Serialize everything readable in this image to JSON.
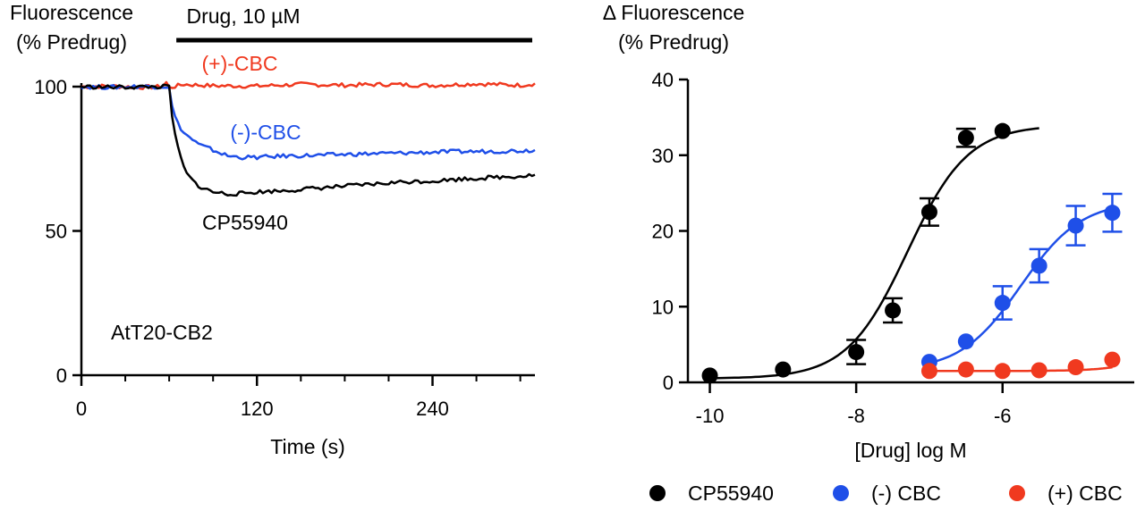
{
  "colors": {
    "cp": "#000000",
    "minus": "#1f4fe8",
    "plus": "#f0391f",
    "axis": "#000000"
  },
  "chart_data": [
    {
      "type": "line",
      "ylabel_lines": [
        "Fluorescence",
        "(% Predrug)"
      ],
      "xlabel": "Time (s)",
      "drug_bar_label": "Drug, 10 µM",
      "drug_bar_x": [
        60,
        310
      ],
      "annotation": "AtT20-CB2",
      "xlim": [
        0,
        310
      ],
      "ylim": [
        0,
        100
      ],
      "xticks": [
        0,
        120,
        240
      ],
      "yticks": [
        0,
        50,
        100
      ],
      "x_minor_ticks": [
        30,
        60,
        90,
        150,
        180,
        210,
        270,
        300
      ],
      "series": [
        {
          "name": "(+)-CBC",
          "color_key": "plus",
          "points": [
            [
              0,
              100
            ],
            [
              20,
              100.2
            ],
            [
              40,
              99.8
            ],
            [
              55,
              100
            ],
            [
              58,
              101.5
            ],
            [
              60,
              99.6
            ],
            [
              70,
              100.8
            ],
            [
              90,
              100.3
            ],
            [
              120,
              100.2
            ],
            [
              150,
              100.8
            ],
            [
              180,
              100.5
            ],
            [
              210,
              100.8
            ],
            [
              240,
              100.4
            ],
            [
              270,
              101
            ],
            [
              300,
              100.5
            ],
            [
              310,
              101
            ]
          ]
        },
        {
          "name": "(-)-CBC",
          "color_key": "minus",
          "points": [
            [
              0,
              100
            ],
            [
              20,
              99.8
            ],
            [
              40,
              100.1
            ],
            [
              60,
              100
            ],
            [
              62,
              93
            ],
            [
              65,
              88
            ],
            [
              70,
              84
            ],
            [
              75,
              82
            ],
            [
              80,
              80
            ],
            [
              90,
              78
            ],
            [
              100,
              76
            ],
            [
              110,
              75.5
            ],
            [
              120,
              75.5
            ],
            [
              140,
              76
            ],
            [
              160,
              76.2
            ],
            [
              180,
              76.5
            ],
            [
              200,
              76.8
            ],
            [
              220,
              77
            ],
            [
              240,
              77.3
            ],
            [
              260,
              77.5
            ],
            [
              280,
              77.6
            ],
            [
              300,
              77.8
            ],
            [
              310,
              78
            ]
          ]
        },
        {
          "name": "CP55940",
          "color_key": "cp",
          "points": [
            [
              0,
              100
            ],
            [
              20,
              99.8
            ],
            [
              40,
              99.9
            ],
            [
              60,
              100
            ],
            [
              62,
              90
            ],
            [
              64,
              83
            ],
            [
              67,
              77
            ],
            [
              70,
              72
            ],
            [
              73,
              69
            ],
            [
              77,
              67
            ],
            [
              82,
              65
            ],
            [
              90,
              63.5
            ],
            [
              100,
              62.8
            ],
            [
              110,
              63
            ],
            [
              120,
              63.5
            ],
            [
              140,
              64
            ],
            [
              160,
              64.8
            ],
            [
              180,
              65.5
            ],
            [
              200,
              66.2
            ],
            [
              220,
              67
            ],
            [
              240,
              67.3
            ],
            [
              260,
              68
            ],
            [
              280,
              68.5
            ],
            [
              300,
              69
            ],
            [
              310,
              69.5
            ]
          ]
        }
      ]
    },
    {
      "type": "scatter",
      "ylabel_lines": [
        "Δ Fluorescence",
        "(% Predrug)"
      ],
      "xlabel": "[Drug] log M",
      "xlim": [
        -10.3,
        -4.2
      ],
      "ylim": [
        0,
        40
      ],
      "xticks": [
        -10,
        -8,
        -6
      ],
      "yticks": [
        0,
        10,
        20,
        30,
        40
      ],
      "series": [
        {
          "name": "CP55940",
          "color_key": "cp",
          "x": [
            -10,
            -9,
            -8,
            -7.5,
            -7,
            -6.5,
            -6,
            -5.5
          ],
          "y": [
            0.9,
            1.7,
            4,
            9.5,
            22.5,
            32.3,
            33.2,
            null
          ],
          "err": [
            0,
            0,
            1.6,
            1.6,
            1.8,
            1.2,
            0,
            0
          ],
          "curve": {
            "bottom": 0.5,
            "top": 34,
            "logec50": -7.3,
            "hill": 1.05,
            "from": -10,
            "to": -5.5
          }
        },
        {
          "name": "(-) CBC",
          "color_key": "minus",
          "x": [
            -7,
            -6.5,
            -6,
            -5.5,
            -5,
            -4.5
          ],
          "y": [
            2.7,
            5.4,
            10.5,
            15.4,
            20.7,
            22.4
          ],
          "err": [
            0,
            0,
            2.2,
            2.2,
            2.6,
            2.5
          ],
          "curve": {
            "bottom": 1.5,
            "top": 24,
            "logec50": -5.75,
            "hill": 1.05,
            "from": -7,
            "to": -4.5
          }
        },
        {
          "name": "(+) CBC",
          "color_key": "plus",
          "x": [
            -7,
            -6.5,
            -6,
            -5.5,
            -5,
            -4.5
          ],
          "y": [
            1.5,
            1.7,
            1.5,
            1.6,
            2,
            3
          ],
          "err": [
            0,
            0,
            0,
            0,
            0,
            0
          ],
          "curve": {
            "bottom": 1.5,
            "top": 20,
            "logec50": -3.3,
            "hill": 1.3,
            "from": -7,
            "to": -4.5
          }
        }
      ],
      "legend": [
        {
          "label": "CP55940",
          "color_key": "cp"
        },
        {
          "label": "(-) CBC",
          "color_key": "minus"
        },
        {
          "label": "(+) CBC",
          "color_key": "plus"
        }
      ]
    }
  ]
}
